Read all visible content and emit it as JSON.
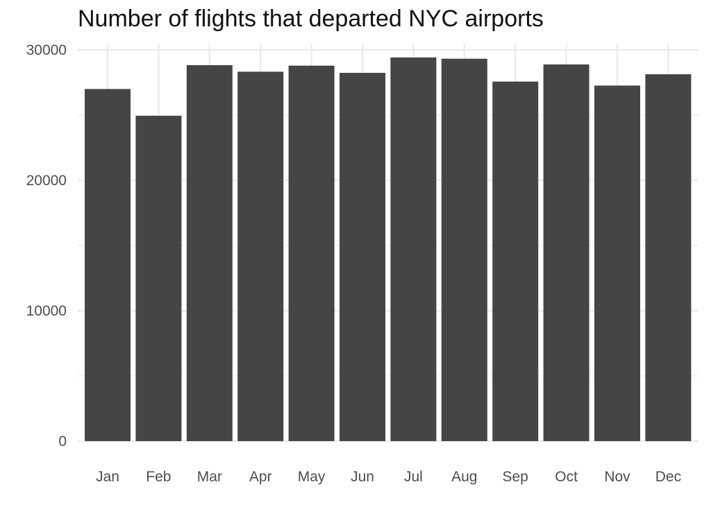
{
  "chart_data": {
    "type": "bar",
    "title": "Number of flights that departed NYC airports",
    "xlabel": "",
    "ylabel": "",
    "categories": [
      "Jan",
      "Feb",
      "Mar",
      "Apr",
      "May",
      "Jun",
      "Jul",
      "Aug",
      "Sep",
      "Oct",
      "Nov",
      "Dec"
    ],
    "values": [
      27004,
      24951,
      28834,
      28330,
      28796,
      28243,
      29425,
      29327,
      27574,
      28889,
      27268,
      28135
    ],
    "ylim": [
      0,
      30000
    ],
    "yticks": [
      0,
      10000,
      20000,
      30000
    ],
    "ytick_labels": [
      "0",
      "10000",
      "20000",
      "30000"
    ],
    "grid": true,
    "bar_color": "#454545",
    "grid_color": "#ebebeb"
  }
}
